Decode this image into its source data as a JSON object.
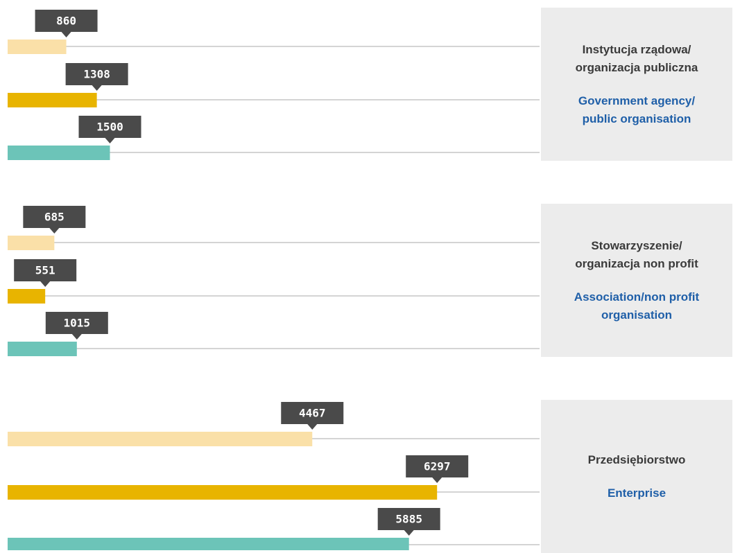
{
  "chart_data": {
    "type": "grouped-hbar",
    "categories": [
      "Instytucja rządowa/ organizacja publiczna",
      "Stowarzyszenie/ organizacja non profit",
      "Przedsiębiorstwo"
    ],
    "category_translations": [
      "Government agency/ public organisation",
      "Association/non profit organisation",
      "Enterprise"
    ],
    "series": [
      {
        "color": "#fae0a8",
        "values": [
          860,
          685,
          4467
        ]
      },
      {
        "color": "#e8b400",
        "values": [
          1308,
          551,
          6297
        ]
      },
      {
        "color": "#6cc4b8",
        "values": [
          1500,
          1015,
          5885
        ]
      }
    ],
    "xlim": [
      0,
      7800
    ]
  }
}
